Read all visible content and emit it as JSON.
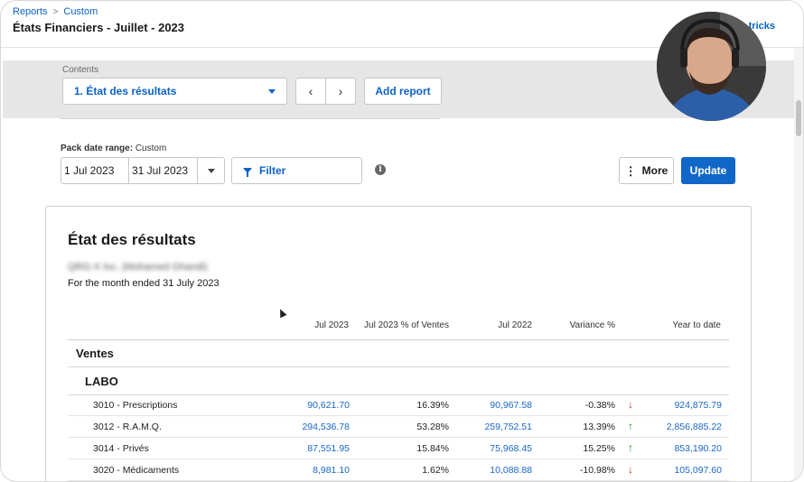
{
  "breadcrumb": {
    "items": [
      "Reports",
      "Custom"
    ],
    "separator": ">"
  },
  "page_title": "États Financiers - Juillet - 2023",
  "tricks_link": "tricks",
  "contents": {
    "label": "Contents",
    "selected": "1. État des résultats",
    "prev_icon": "chevron-left-icon",
    "next_icon": "chevron-right-icon",
    "prev_glyph": "‹",
    "next_glyph": "›",
    "add_report_label": "Add report"
  },
  "pack": {
    "label_bold": "Pack date range:",
    "label_value": "Custom",
    "start_date": "1 Jul 2023",
    "end_date": "31 Jul 2023",
    "filter_label": "Filter",
    "info_glyph": "i",
    "more_label": "More",
    "more_glyph": "⋮",
    "update_label": "Update"
  },
  "report": {
    "title": "État des résultats",
    "company": "QRG-X Inc. (Mohamed Ghandi)",
    "period": "For the month ended 31 July 2023",
    "columns": [
      "Jul 2023",
      "Jul 2023 % of Ventes",
      "Jul 2022",
      "Variance %",
      "Year to date"
    ],
    "section": "Ventes",
    "group": "LABO",
    "rows": [
      {
        "label": "3010 - Prescriptions",
        "jul2023": "90,621.70",
        "pct": "16.39%",
        "jul2022": "90,967.58",
        "variance": "-0.38%",
        "trend": "down",
        "trend_glyph": "↓",
        "ytd": "924,875.79"
      },
      {
        "label": "3012 - R.A.M.Q.",
        "jul2023": "294,536.78",
        "pct": "53.28%",
        "jul2022": "259,752.51",
        "variance": "13.39%",
        "trend": "up",
        "trend_glyph": "↑",
        "ytd": "2,856,885.22"
      },
      {
        "label": "3014 - Privés",
        "jul2023": "87,551.95",
        "pct": "15.84%",
        "jul2022": "75,968.45",
        "variance": "15.25%",
        "trend": "up",
        "trend_glyph": "↑",
        "ytd": "853,190.20"
      },
      {
        "label": "3020 - Médicaments",
        "jul2023": "8,981.10",
        "pct": "1.62%",
        "jul2022": "10,088.88",
        "variance": "-10.98%",
        "trend": "down",
        "trend_glyph": "↓",
        "ytd": "105,097.60"
      }
    ]
  },
  "colors": {
    "accent": "#0b62c4",
    "primary_button": "#1067c8",
    "trend_up": "#108a2c",
    "trend_down": "#d52b1e"
  }
}
